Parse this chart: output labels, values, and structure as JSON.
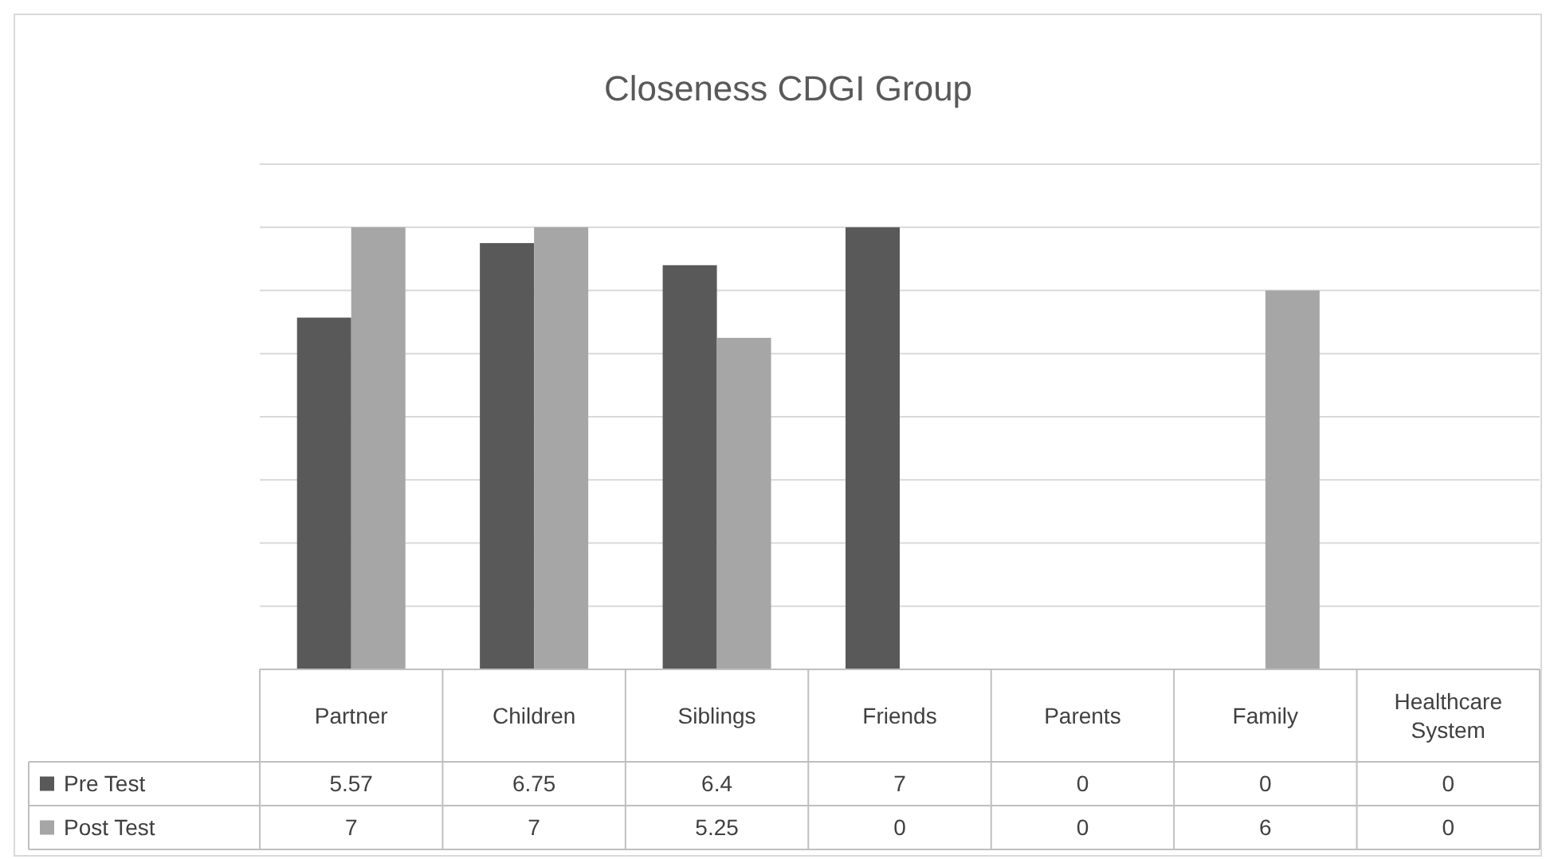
{
  "chart_data": {
    "type": "bar",
    "title": "Closeness CDGI Group",
    "categories": [
      "Partner",
      "Children",
      "Siblings",
      "Friends",
      "Parents",
      "Family",
      "Healthcare System"
    ],
    "series": [
      {
        "name": "Pre Test",
        "color": "#595959",
        "values": [
          5.57,
          6.75,
          6.4,
          7,
          0,
          0,
          0
        ]
      },
      {
        "name": "Post Test",
        "color": "#a6a6a6",
        "values": [
          7,
          7,
          5.25,
          0,
          0,
          6,
          0
        ]
      }
    ],
    "ylim": [
      0,
      8
    ],
    "yticks": [
      {
        "value": 0,
        "label": null
      },
      {
        "value": 1,
        "label": null
      },
      {
        "value": 2,
        "label": null
      },
      {
        "value": 3,
        "label": null
      },
      {
        "value": 4,
        "label": null
      },
      {
        "value": 5,
        "label": null
      },
      {
        "value": 6,
        "label": null
      },
      {
        "value": 7,
        "label": null
      },
      {
        "value": 8,
        "label": null
      }
    ],
    "grid": "y",
    "tick_labels": "x",
    "data_labels": true,
    "legend": "bottom left"
  }
}
